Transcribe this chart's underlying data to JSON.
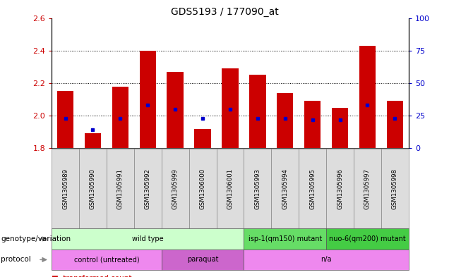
{
  "title": "GDS5193 / 177090_at",
  "samples": [
    "GSM1305989",
    "GSM1305990",
    "GSM1305991",
    "GSM1305992",
    "GSM1305999",
    "GSM1306000",
    "GSM1306001",
    "GSM1305993",
    "GSM1305994",
    "GSM1305995",
    "GSM1305996",
    "GSM1305997",
    "GSM1305998"
  ],
  "transformed_count": [
    2.15,
    1.89,
    2.18,
    2.4,
    2.27,
    1.92,
    2.29,
    2.25,
    2.14,
    2.09,
    2.05,
    2.43,
    2.09
  ],
  "percentile_rank_pct": [
    23,
    14,
    23,
    33,
    30,
    23,
    30,
    23,
    23,
    22,
    22,
    33,
    23
  ],
  "ylim_left": [
    1.8,
    2.6
  ],
  "ylim_right": [
    0,
    100
  ],
  "yticks_left": [
    1.8,
    2.0,
    2.2,
    2.4,
    2.6
  ],
  "yticks_right": [
    0,
    25,
    50,
    75,
    100
  ],
  "bar_color": "#cc0000",
  "dot_color": "#0000cc",
  "bar_bottom": 1.8,
  "genotype_groups": [
    {
      "label": "wild type",
      "start": 0,
      "end": 7,
      "color": "#ccffcc"
    },
    {
      "label": "isp-1(qm150) mutant",
      "start": 7,
      "end": 10,
      "color": "#66dd66"
    },
    {
      "label": "nuo-6(qm200) mutant",
      "start": 10,
      "end": 13,
      "color": "#44cc44"
    }
  ],
  "protocol_groups": [
    {
      "label": "control (untreated)",
      "start": 0,
      "end": 4,
      "color": "#ee88ee"
    },
    {
      "label": "paraquat",
      "start": 4,
      "end": 7,
      "color": "#cc66cc"
    },
    {
      "label": "n/a",
      "start": 7,
      "end": 13,
      "color": "#ee88ee"
    }
  ],
  "background_color": "#ffffff",
  "tick_label_color_left": "#cc0000",
  "tick_label_color_right": "#0000cc",
  "xlabel_bg": "#dddddd"
}
